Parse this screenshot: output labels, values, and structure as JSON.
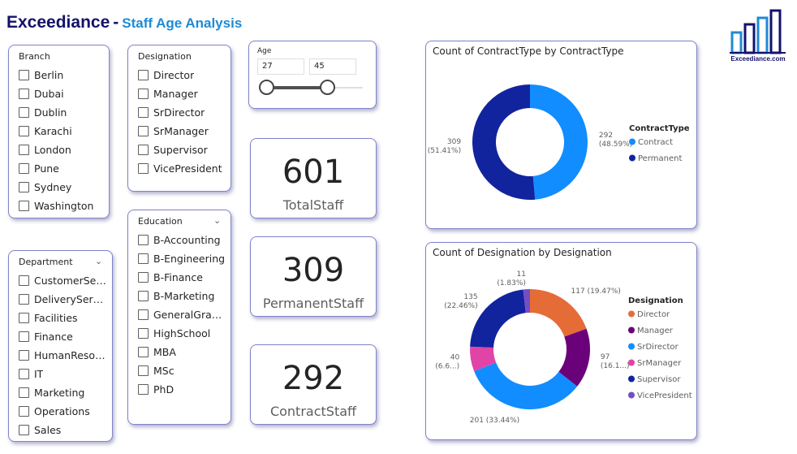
{
  "header": {
    "brand": "Exceediance",
    "separator": "-",
    "subtitle": "Staff Age Analysis"
  },
  "logo": {
    "text": "Exceediance.com",
    "icon": "bar-chart-logo-icon"
  },
  "branch": {
    "title": "Branch",
    "items": [
      "Berlin",
      "Dubai",
      "Dublin",
      "Karachi",
      "London",
      "Pune",
      "Sydney",
      "Washington"
    ]
  },
  "designation_slicer": {
    "title": "Designation",
    "items": [
      "Director",
      "Manager",
      "SrDirector",
      "SrManager",
      "Supervisor",
      "VicePresident"
    ]
  },
  "department": {
    "title": "Department",
    "items": [
      "CustomerServ...",
      "DeliveryService",
      "Facilities",
      "Finance",
      "HumanResour...",
      "IT",
      "Marketing",
      "Operations",
      "Sales"
    ]
  },
  "education": {
    "title": "Education",
    "items": [
      "B-Accounting",
      "B-Engineering",
      "B-Finance",
      "B-Marketing",
      "GeneralGradu...",
      "HighSchool",
      "MBA",
      "MSc",
      "PhD"
    ]
  },
  "age": {
    "title": "Age",
    "min": "27",
    "max": "45"
  },
  "kpis": [
    {
      "value": "601",
      "label": "TotalStaff"
    },
    {
      "value": "309",
      "label": "PermanentStaff"
    },
    {
      "value": "292",
      "label": "ContractStaff"
    }
  ],
  "colors": {
    "contract": "#118dff",
    "permanent": "#12239e",
    "director": "#e66c37",
    "manager": "#6b007b",
    "srdirector": "#118dff",
    "srmanager": "#e044a7",
    "supervisor": "#12239e",
    "vicepresident": "#744ec2"
  },
  "chart_data": [
    {
      "type": "donut",
      "title": "Count of ContractType by ContractType",
      "legend_title": "ContractType",
      "legend_position": "right",
      "categories": [
        "Contract",
        "Permanent"
      ],
      "values": [
        292,
        309
      ],
      "data_labels": [
        {
          "value": "292",
          "pct": "(48.59%)"
        },
        {
          "value": "309",
          "pct": "(51.41%)"
        }
      ]
    },
    {
      "type": "donut",
      "title": "Count of Designation by Designation",
      "legend_title": "Designation",
      "legend_position": "right",
      "categories": [
        "Director",
        "Manager",
        "SrDirector",
        "SrManager",
        "Supervisor",
        "VicePresident"
      ],
      "values": [
        117,
        97,
        201,
        40,
        135,
        11
      ],
      "data_labels": [
        {
          "value": "117",
          "pct": "(19.47%)"
        },
        {
          "value": "97",
          "pct": "(16.1...)"
        },
        {
          "value": "201",
          "pct": "(33.44%)"
        },
        {
          "value": "40",
          "pct": "(6.6...)"
        },
        {
          "value": "135",
          "pct": "(22.46%)"
        },
        {
          "value": "11",
          "pct": "(1.83%)"
        }
      ]
    }
  ]
}
